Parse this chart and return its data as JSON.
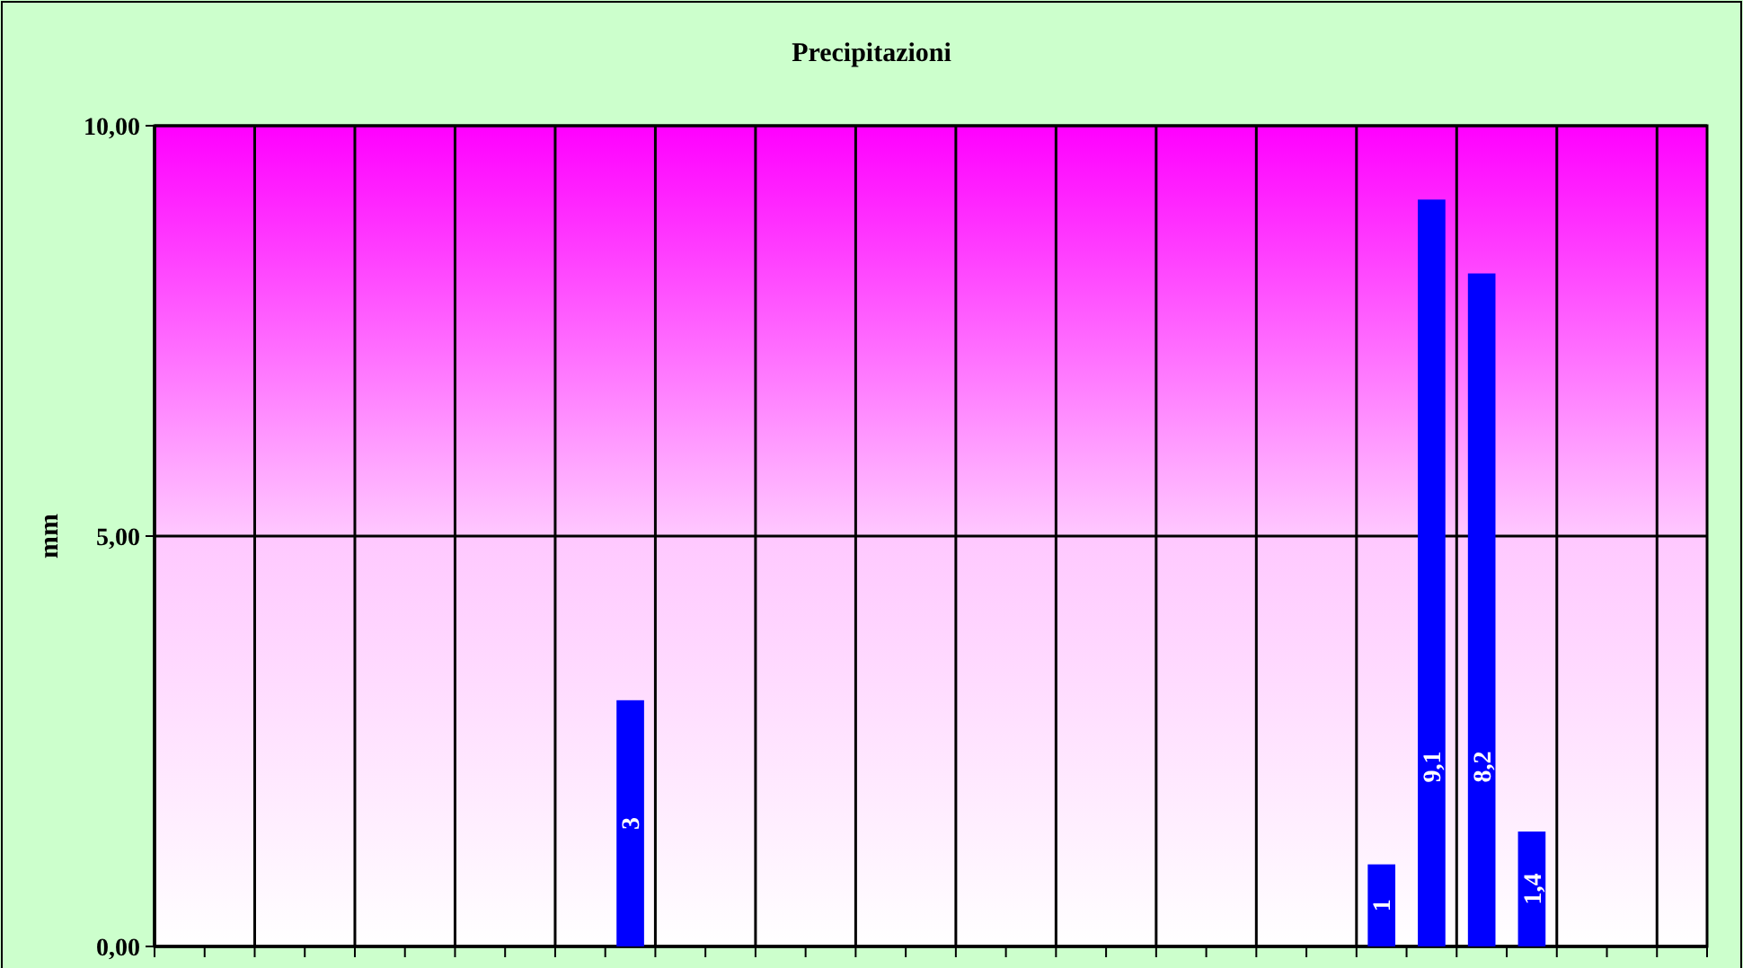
{
  "chart_data": {
    "type": "bar",
    "title": "Precipitazioni",
    "ylabel": "mm",
    "categories": [
      null,
      null,
      null,
      null,
      null,
      null,
      null,
      null,
      null,
      null,
      null,
      null,
      null,
      null,
      null,
      null,
      null,
      null,
      null,
      null,
      null,
      null,
      null,
      null,
      null,
      null,
      null,
      null,
      null,
      null,
      null
    ],
    "values": [
      null,
      null,
      null,
      null,
      null,
      null,
      null,
      null,
      null,
      3,
      null,
      null,
      null,
      null,
      null,
      null,
      null,
      null,
      null,
      null,
      null,
      null,
      null,
      null,
      1,
      9.1,
      8.2,
      1.4,
      null,
      null,
      null
    ],
    "value_labels": [
      null,
      null,
      null,
      null,
      null,
      null,
      null,
      null,
      null,
      "3",
      null,
      null,
      null,
      null,
      null,
      null,
      null,
      null,
      null,
      null,
      null,
      null,
      null,
      null,
      "1",
      "9,1",
      "8,2",
      "1,4",
      null,
      null,
      null
    ],
    "color": "#0000ff",
    "ylim": [
      0,
      10
    ],
    "yticks": [
      {
        "value": 0,
        "label": "0,00"
      },
      {
        "value": 5,
        "label": "5,00"
      },
      {
        "value": 10,
        "label": "10,00"
      }
    ],
    "grid": true
  }
}
